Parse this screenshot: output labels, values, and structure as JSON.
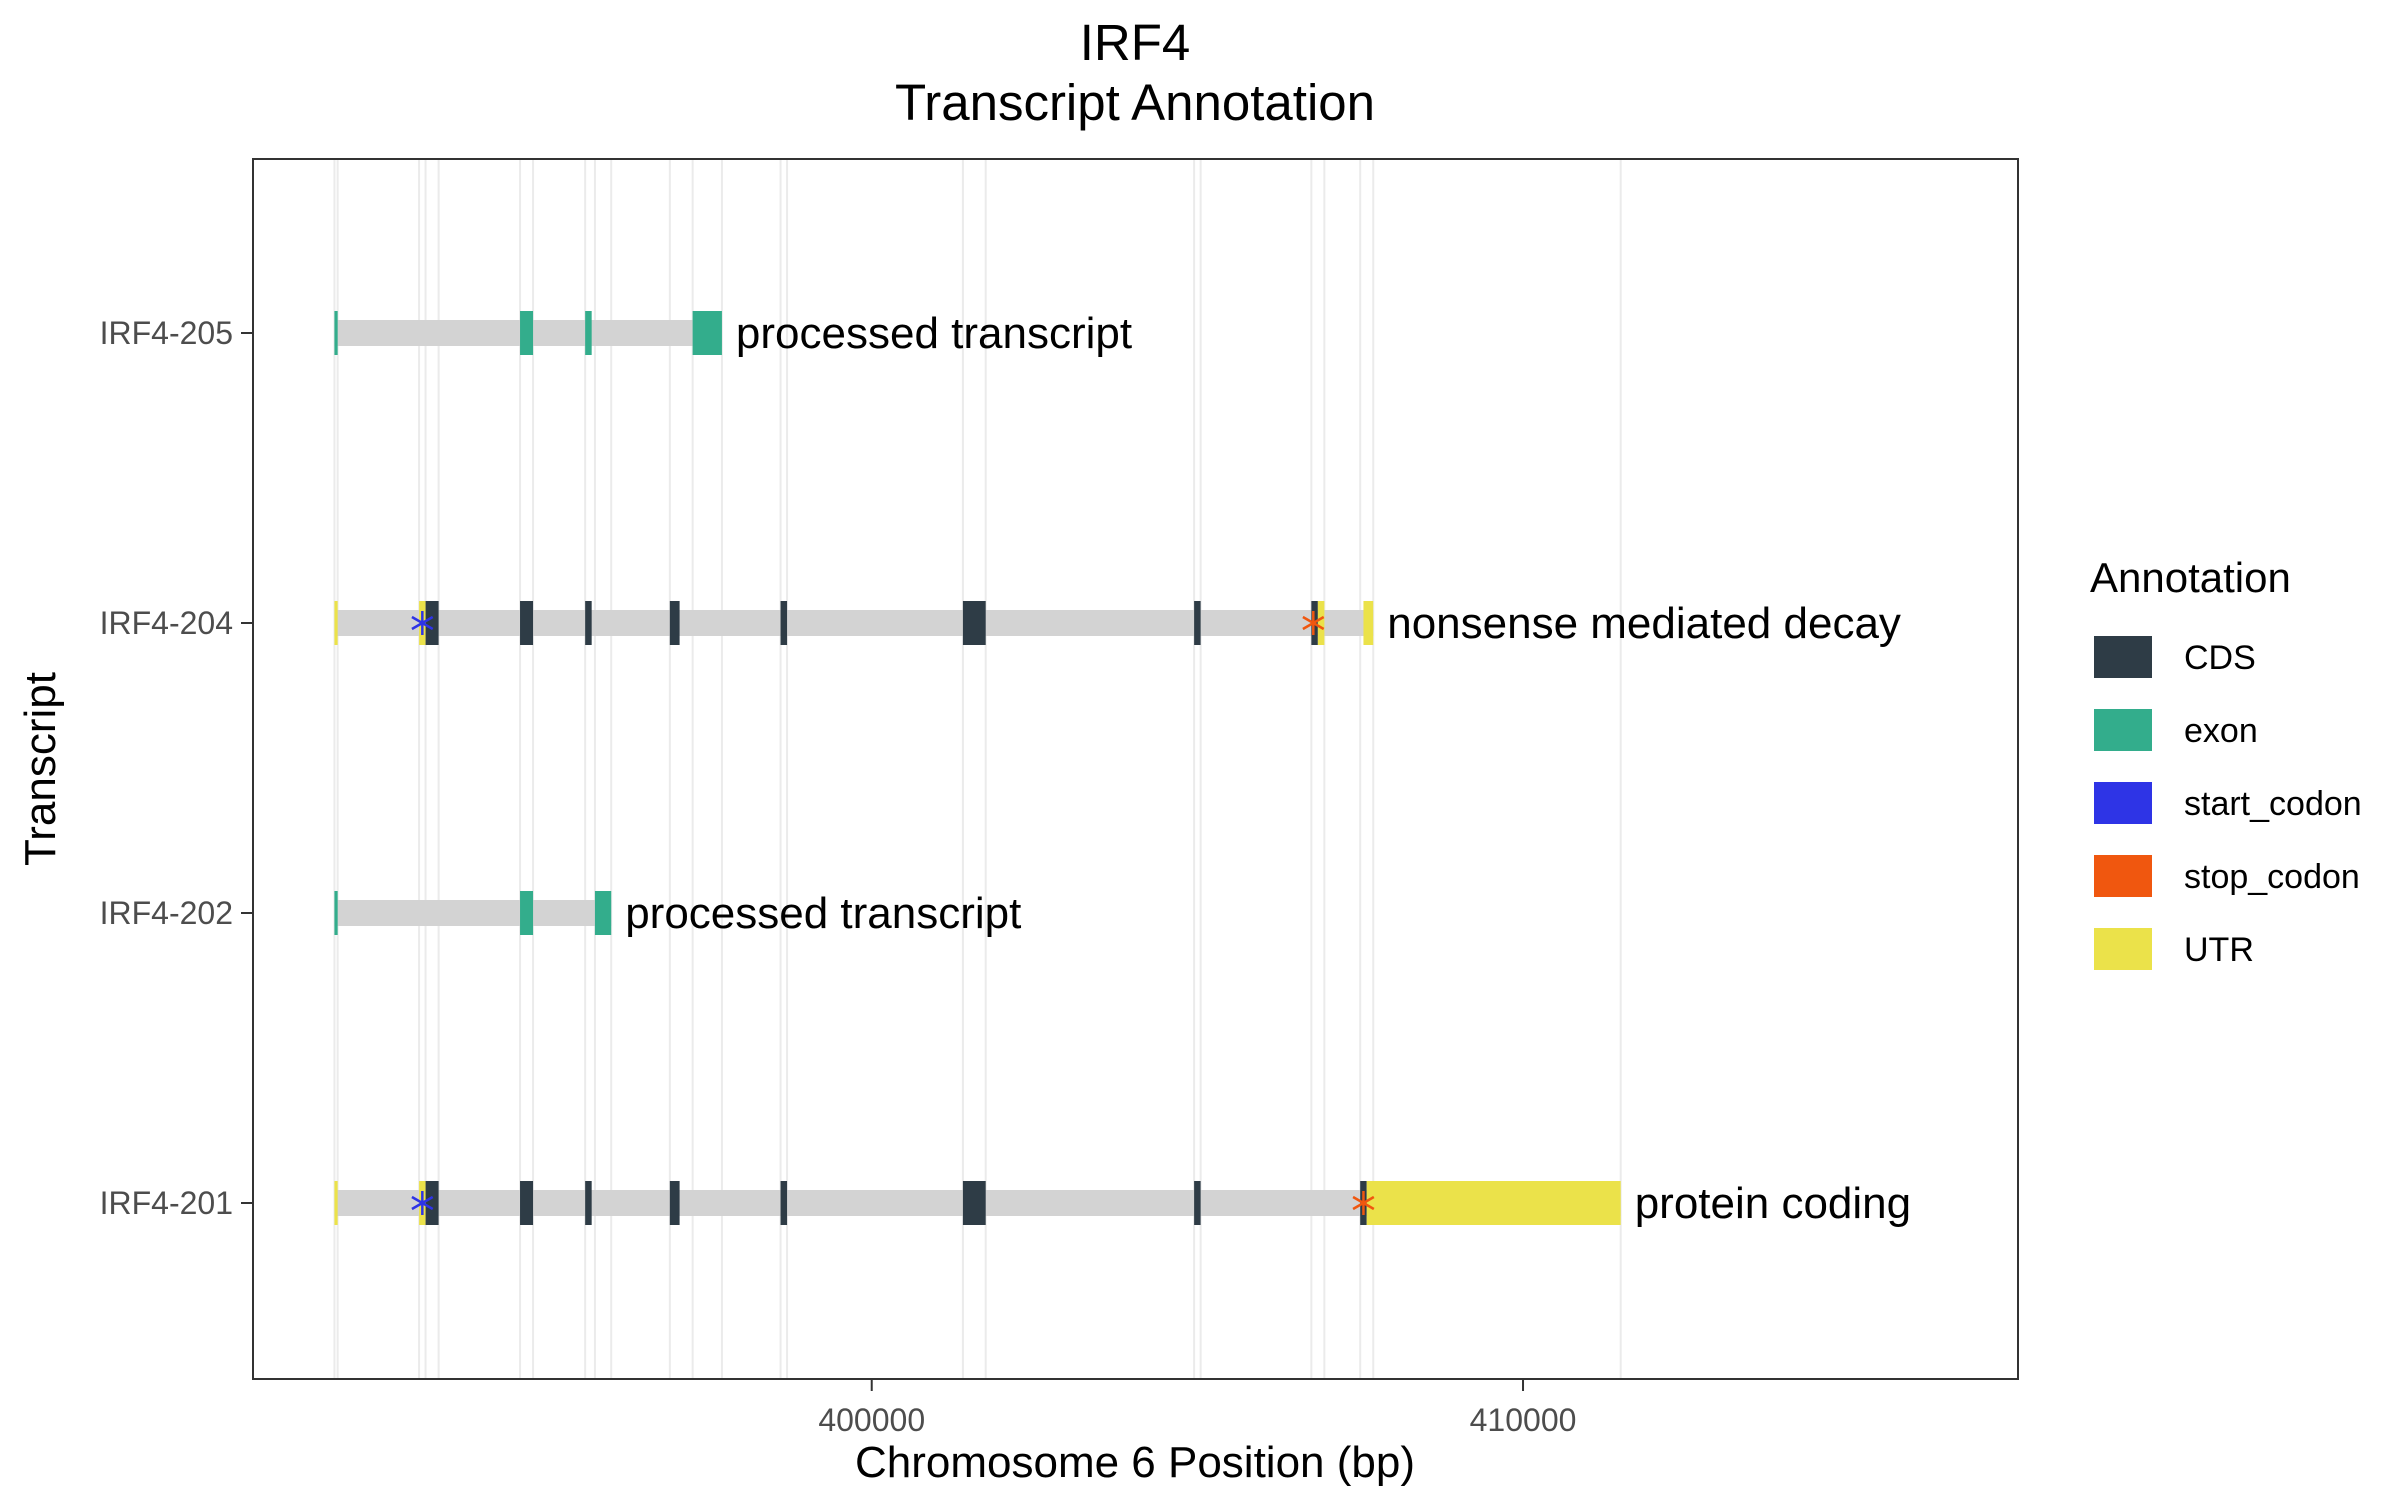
{
  "chart_data": {
    "type": "gene-structure",
    "title_lines": [
      "IRF4",
      "Transcript Annotation"
    ],
    "xlabel": "Chromosome 6 Position (bp)",
    "ylabel": "Transcript",
    "xlim": [
      390500,
      417600
    ],
    "x_ticks": [
      {
        "value": 400000,
        "label": "400000"
      },
      {
        "value": 410000,
        "label": "410000"
      }
    ],
    "grid": true,
    "legend_position": "right",
    "legend": {
      "title": "Annotation",
      "entries": [
        {
          "key": "CDS",
          "label": "CDS",
          "color": "#2e3c46"
        },
        {
          "key": "exon",
          "label": "exon",
          "color": "#33ad8c"
        },
        {
          "key": "start_codon",
          "label": "start_codon",
          "color": "#2e34e6"
        },
        {
          "key": "stop_codon",
          "label": "stop_codon",
          "color": "#f0570f"
        },
        {
          "key": "UTR",
          "label": "UTR",
          "color": "#ebe24a"
        }
      ]
    },
    "intron_color": "#d3d3d3",
    "transcripts": [
      {
        "name": "IRF4-205",
        "biotype": "processed transcript",
        "start": 391750,
        "end": 397700,
        "features": [
          {
            "type": "exon",
            "start": 391750,
            "end": 391800
          },
          {
            "type": "exon",
            "start": 394600,
            "end": 394800
          },
          {
            "type": "exon",
            "start": 395600,
            "end": 395700
          },
          {
            "type": "exon",
            "start": 397250,
            "end": 397700
          }
        ],
        "codons": []
      },
      {
        "name": "IRF4-204",
        "biotype": "nonsense mediated decay",
        "start": 391750,
        "end": 407700,
        "features": [
          {
            "type": "UTR",
            "start": 391750,
            "end": 391800
          },
          {
            "type": "UTR",
            "start": 393050,
            "end": 393150
          },
          {
            "type": "CDS",
            "start": 393150,
            "end": 393350
          },
          {
            "type": "CDS",
            "start": 394600,
            "end": 394800
          },
          {
            "type": "CDS",
            "start": 395600,
            "end": 395700
          },
          {
            "type": "CDS",
            "start": 396900,
            "end": 397050
          },
          {
            "type": "CDS",
            "start": 398600,
            "end": 398700
          },
          {
            "type": "CDS",
            "start": 401400,
            "end": 401750
          },
          {
            "type": "CDS",
            "start": 404950,
            "end": 405050
          },
          {
            "type": "CDS",
            "start": 406750,
            "end": 406850
          },
          {
            "type": "UTR",
            "start": 406850,
            "end": 406950
          },
          {
            "type": "UTR",
            "start": 407550,
            "end": 407700
          }
        ],
        "codons": [
          {
            "type": "start_codon",
            "pos": 393100
          },
          {
            "type": "stop_codon",
            "pos": 406780
          }
        ]
      },
      {
        "name": "IRF4-202",
        "biotype": "processed transcript",
        "start": 391750,
        "end": 396000,
        "features": [
          {
            "type": "exon",
            "start": 391750,
            "end": 391800
          },
          {
            "type": "exon",
            "start": 394600,
            "end": 394800
          },
          {
            "type": "exon",
            "start": 395750,
            "end": 396000
          }
        ],
        "codons": []
      },
      {
        "name": "IRF4-201",
        "biotype": "protein coding",
        "start": 391750,
        "end": 411500,
        "features": [
          {
            "type": "UTR",
            "start": 391750,
            "end": 391800
          },
          {
            "type": "UTR",
            "start": 393050,
            "end": 393150
          },
          {
            "type": "CDS",
            "start": 393150,
            "end": 393350
          },
          {
            "type": "CDS",
            "start": 394600,
            "end": 394800
          },
          {
            "type": "CDS",
            "start": 395600,
            "end": 395700
          },
          {
            "type": "CDS",
            "start": 396900,
            "end": 397050
          },
          {
            "type": "CDS",
            "start": 398600,
            "end": 398700
          },
          {
            "type": "CDS",
            "start": 401400,
            "end": 401750
          },
          {
            "type": "CDS",
            "start": 404950,
            "end": 405050
          },
          {
            "type": "CDS",
            "start": 407500,
            "end": 407600
          },
          {
            "type": "UTR",
            "start": 407600,
            "end": 411500
          }
        ],
        "codons": [
          {
            "type": "start_codon",
            "pos": 393100
          },
          {
            "type": "stop_codon",
            "pos": 407550
          }
        ]
      }
    ],
    "exon_boundary_gridlines": [
      391750,
      391800,
      393050,
      393150,
      393350,
      394600,
      394800,
      395600,
      395750,
      396000,
      396900,
      397250,
      397700,
      398600,
      398700,
      401400,
      401750,
      404950,
      405050,
      406750,
      406950,
      407500,
      407700,
      411500
    ]
  }
}
